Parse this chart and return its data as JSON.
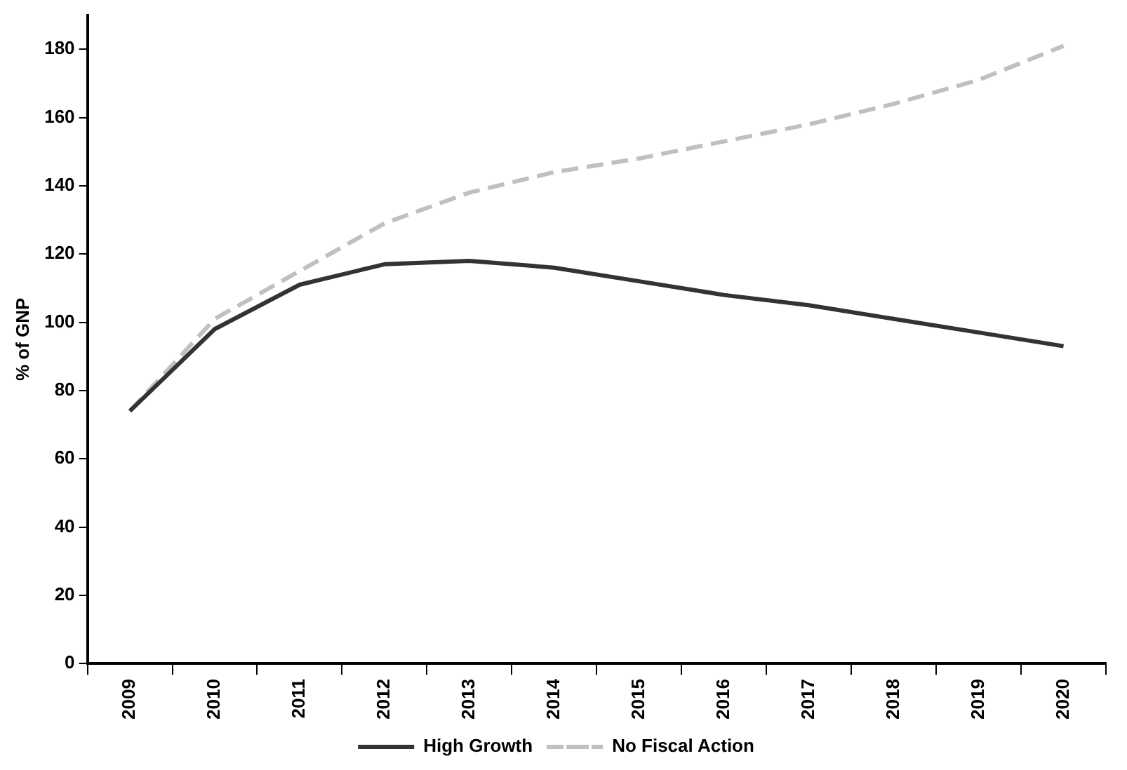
{
  "chart_data": {
    "type": "line",
    "ylabel": "% of GNP",
    "categories": [
      "2009",
      "2010",
      "2011",
      "2012",
      "2013",
      "2014",
      "2015",
      "2016",
      "2017",
      "2018",
      "2019",
      "2020"
    ],
    "series": [
      {
        "name": "High Growth",
        "color": "#333333",
        "line_style": "solid",
        "values": [
          74,
          98,
          111,
          117,
          118,
          116,
          112,
          108,
          105,
          101,
          97,
          93
        ]
      },
      {
        "name": "No Fiscal Action",
        "color": "#c0c0c0",
        "line_style": "dashed",
        "values": [
          74,
          101,
          115,
          129,
          138,
          144,
          148,
          153,
          158,
          164,
          171,
          181
        ]
      }
    ],
    "ylim": [
      0,
      190
    ],
    "yticks": [
      0,
      20,
      40,
      60,
      80,
      100,
      120,
      140,
      160,
      180
    ],
    "grid": false,
    "legend": "bottom",
    "marker": "none"
  }
}
